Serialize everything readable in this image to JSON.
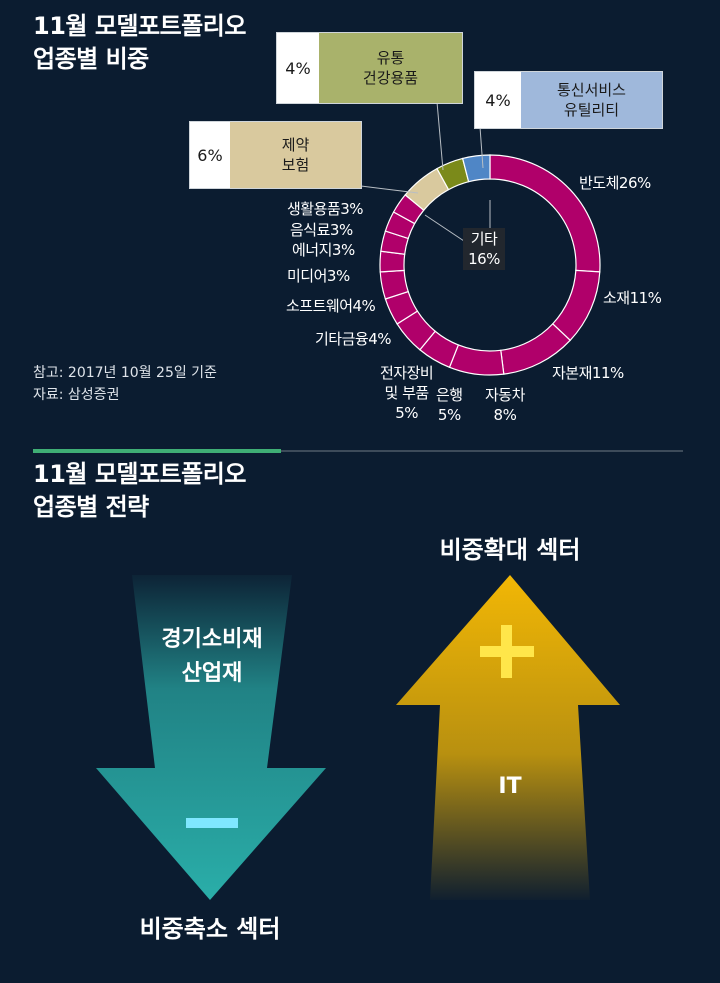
{
  "section1": {
    "title": "11월 모델포트폴리오\n업종별 비중",
    "note_date": "참고: 2017년 10월 25일 기준",
    "note_source": "자료: 삼성증권"
  },
  "section2": {
    "title": "11월 모델포트폴리오\n업종별 전략"
  },
  "chart_data": {
    "type": "pie",
    "style": "donut",
    "center_label": "기타\n16%",
    "slices": [
      {
        "label": "반도체",
        "value": 26,
        "display": "반도체26%",
        "color": "#b0006a"
      },
      {
        "label": "소재",
        "value": 11,
        "display": "소재11%",
        "color": "#b0006a"
      },
      {
        "label": "자본재",
        "value": 11,
        "display": "자본재11%",
        "color": "#b0006a"
      },
      {
        "label": "자동차",
        "value": 8,
        "display": "자동차\n8%",
        "color": "#b0006a"
      },
      {
        "label": "은행",
        "value": 5,
        "display": "은행\n5%",
        "color": "#b0006a"
      },
      {
        "label": "전자장비 및 부품",
        "value": 5,
        "display": "전자장비\n및 부품\n5%",
        "color": "#b0006a"
      },
      {
        "label": "기타금융",
        "value": 4,
        "display": "기타금융4%",
        "color": "#b0006a"
      },
      {
        "label": "소프트웨어",
        "value": 4,
        "display": "소프트웨어4%",
        "color": "#b0006a"
      },
      {
        "label": "미디어",
        "value": 3,
        "display": "미디어3%",
        "color": "#b0006a"
      },
      {
        "label": "에너지",
        "value": 3,
        "display": "에너지3%",
        "color": "#b0006a"
      },
      {
        "label": "음식료",
        "value": 3,
        "display": "음식료3%",
        "color": "#b0006a"
      },
      {
        "label": "생활용품",
        "value": 3,
        "display": "생활용품3%",
        "color": "#b0006a"
      },
      {
        "label": "제약 보험",
        "value": 6,
        "display": "6%",
        "box_label": "제약\n보험",
        "color": "#d9c99e"
      },
      {
        "label": "유통 건강용품",
        "value": 4,
        "display": "4%",
        "box_label": "유통\n건강용품",
        "color": "#7b8a1a"
      },
      {
        "label": "통신서비스 유틸리티",
        "value": 4,
        "display": "4%",
        "box_label": "통신서비스\n유틸리티",
        "color": "#4f86c6"
      }
    ]
  },
  "strategy": {
    "down": {
      "sectors": "경기소비재\n산업재",
      "sign": "−",
      "caption": "비중축소 섹터",
      "color": "#2aaea9"
    },
    "up": {
      "sectors": "IT",
      "sign": "+",
      "caption": "비중확대 섹터",
      "color": "#f2b705"
    }
  }
}
